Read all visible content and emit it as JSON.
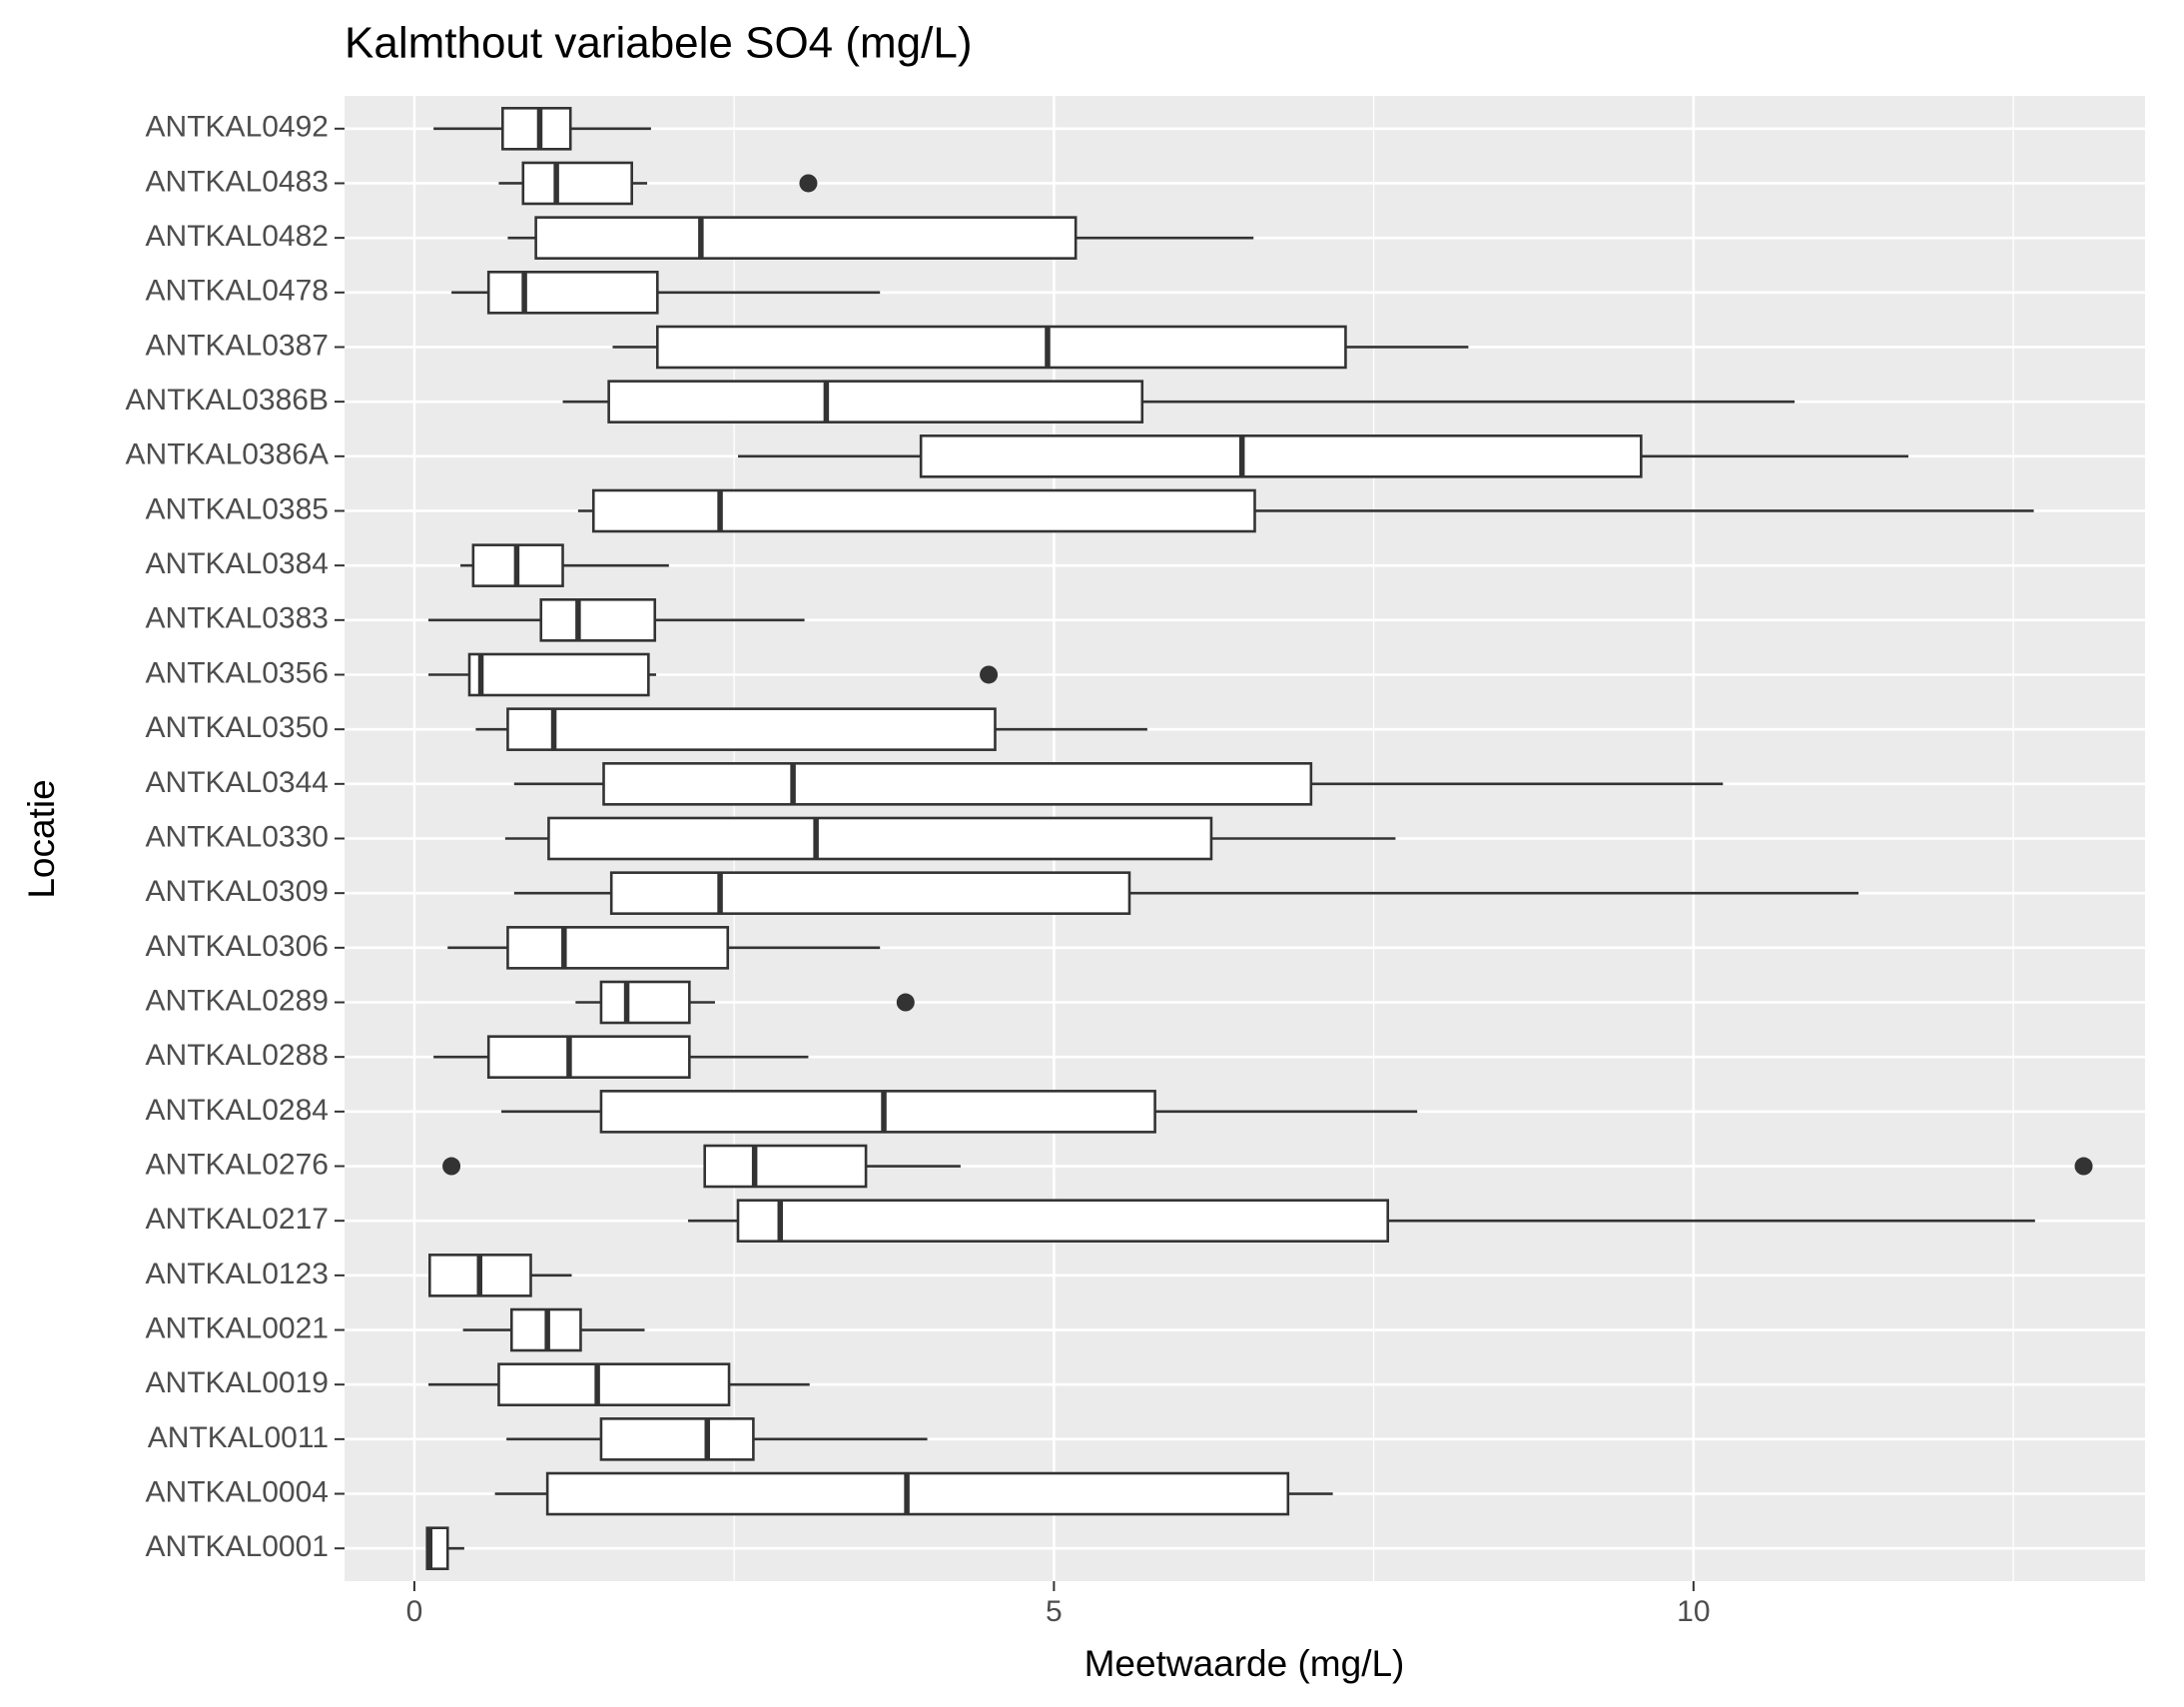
{
  "chart_data": {
    "type": "boxplot",
    "title": "Kalmthout variabele SO4 (mg/L)",
    "x_label": "Meetwaarde (mg/L)",
    "y_label": "Locatie",
    "orientation": "horizontal",
    "grid": true,
    "color": "#333333",
    "xlim": [
      -0.546,
      13.53
    ],
    "xticks": [
      0,
      5,
      10
    ],
    "categories": [
      "ANTKAL0492",
      "ANTKAL0483",
      "ANTKAL0482",
      "ANTKAL0478",
      "ANTKAL0387",
      "ANTKAL0386B",
      "ANTKAL0386A",
      "ANTKAL0385",
      "ANTKAL0384",
      "ANTKAL0383",
      "ANTKAL0356",
      "ANTKAL0350",
      "ANTKAL0344",
      "ANTKAL0330",
      "ANTKAL0309",
      "ANTKAL0306",
      "ANTKAL0289",
      "ANTKAL0288",
      "ANTKAL0284",
      "ANTKAL0276",
      "ANTKAL0217",
      "ANTKAL0123",
      "ANTKAL0021",
      "ANTKAL0019",
      "ANTKAL0011",
      "ANTKAL0004",
      "ANTKAL0001"
    ],
    "boxes": [
      {
        "min": 0.15,
        "q1": 0.69,
        "median": 0.98,
        "q3": 1.22,
        "max": 1.85,
        "outliers": []
      },
      {
        "min": 0.66,
        "q1": 0.85,
        "median": 1.11,
        "q3": 1.7,
        "max": 1.82,
        "outliers": [
          3.08
        ]
      },
      {
        "min": 0.73,
        "q1": 0.95,
        "median": 2.24,
        "q3": 5.17,
        "max": 6.56,
        "outliers": []
      },
      {
        "min": 0.29,
        "q1": 0.58,
        "median": 0.86,
        "q3": 1.9,
        "max": 3.64,
        "outliers": []
      },
      {
        "min": 1.55,
        "q1": 1.9,
        "median": 4.95,
        "q3": 7.28,
        "max": 8.24,
        "outliers": []
      },
      {
        "min": 1.16,
        "q1": 1.52,
        "median": 3.22,
        "q3": 5.69,
        "max": 10.79,
        "outliers": []
      },
      {
        "min": 2.53,
        "q1": 3.96,
        "median": 6.47,
        "q3": 9.59,
        "max": 11.68,
        "outliers": []
      },
      {
        "min": 1.28,
        "q1": 1.4,
        "median": 2.39,
        "q3": 6.57,
        "max": 12.66,
        "outliers": []
      },
      {
        "min": 0.36,
        "q1": 0.46,
        "median": 0.8,
        "q3": 1.16,
        "max": 1.99,
        "outliers": []
      },
      {
        "min": 0.11,
        "q1": 0.99,
        "median": 1.28,
        "q3": 1.88,
        "max": 3.05,
        "outliers": []
      },
      {
        "min": 0.11,
        "q1": 0.43,
        "median": 0.52,
        "q3": 1.83,
        "max": 1.89,
        "outliers": [
          4.49
        ]
      },
      {
        "min": 0.48,
        "q1": 0.73,
        "median": 1.09,
        "q3": 4.54,
        "max": 5.73,
        "outliers": []
      },
      {
        "min": 0.78,
        "q1": 1.48,
        "median": 2.96,
        "q3": 7.01,
        "max": 10.23,
        "outliers": []
      },
      {
        "min": 0.71,
        "q1": 1.05,
        "median": 3.14,
        "q3": 6.23,
        "max": 7.67,
        "outliers": []
      },
      {
        "min": 0.78,
        "q1": 1.54,
        "median": 2.39,
        "q3": 5.59,
        "max": 11.29,
        "outliers": []
      },
      {
        "min": 0.26,
        "q1": 0.73,
        "median": 1.17,
        "q3": 2.45,
        "max": 3.64,
        "outliers": []
      },
      {
        "min": 1.26,
        "q1": 1.46,
        "median": 1.66,
        "q3": 2.15,
        "max": 2.35,
        "outliers": [
          3.84
        ]
      },
      {
        "min": 0.15,
        "q1": 0.58,
        "median": 1.21,
        "q3": 2.15,
        "max": 3.08,
        "outliers": []
      },
      {
        "min": 0.68,
        "q1": 1.46,
        "median": 3.67,
        "q3": 5.79,
        "max": 7.84,
        "outliers": []
      },
      {
        "min": 2.27,
        "q1": 2.27,
        "median": 2.66,
        "q3": 3.53,
        "max": 4.27,
        "outliers": [
          0.29,
          13.05
        ]
      },
      {
        "min": 2.14,
        "q1": 2.53,
        "median": 2.86,
        "q3": 7.61,
        "max": 12.67,
        "outliers": []
      },
      {
        "min": 0.11,
        "q1": 0.12,
        "median": 0.51,
        "q3": 0.91,
        "max": 1.23,
        "outliers": []
      },
      {
        "min": 0.38,
        "q1": 0.76,
        "median": 1.04,
        "q3": 1.3,
        "max": 1.8,
        "outliers": []
      },
      {
        "min": 0.11,
        "q1": 0.66,
        "median": 1.43,
        "q3": 2.46,
        "max": 3.09,
        "outliers": []
      },
      {
        "min": 0.72,
        "q1": 1.46,
        "median": 2.29,
        "q3": 2.65,
        "max": 4.01,
        "outliers": []
      },
      {
        "min": 0.63,
        "q1": 1.04,
        "median": 3.85,
        "q3": 6.83,
        "max": 7.18,
        "outliers": []
      },
      {
        "min": 0.09,
        "q1": 0.1,
        "median": 0.12,
        "q3": 0.26,
        "max": 0.39,
        "outliers": []
      }
    ]
  }
}
